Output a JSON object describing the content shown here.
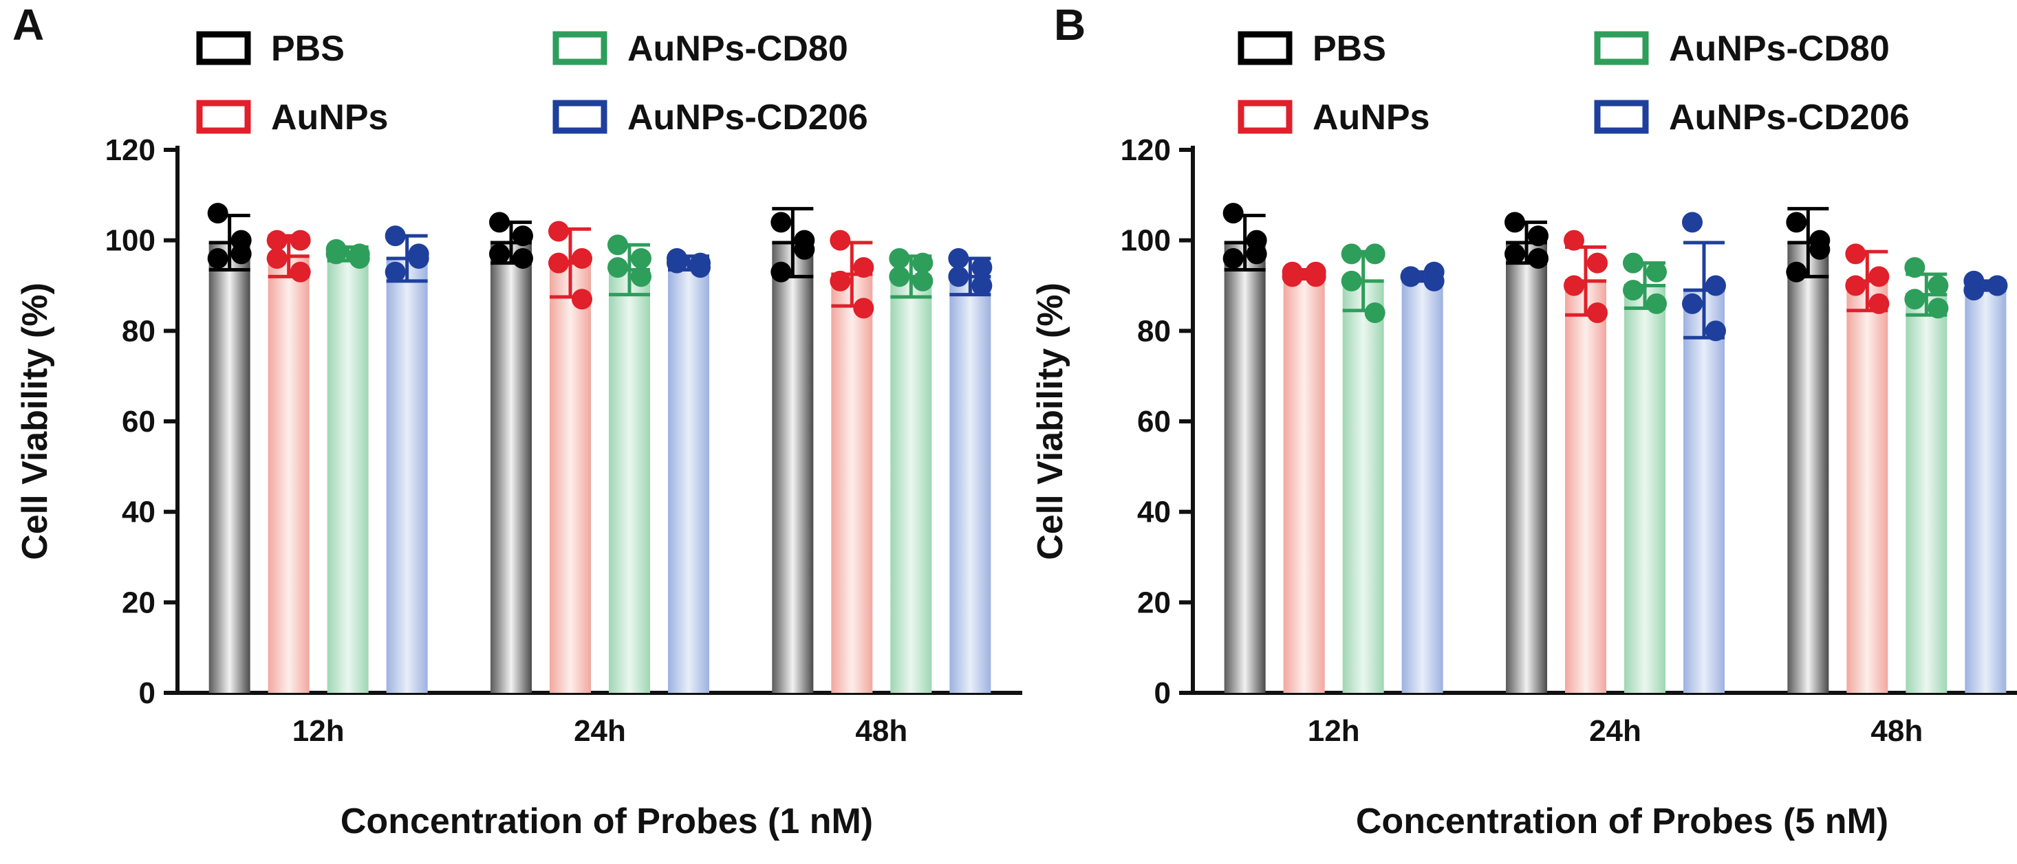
{
  "colors": {
    "PBS": "#000000",
    "AuNPs": "#e0202a",
    "AuNPs-CD80": "#2e9e5b",
    "AuNPs-CD206": "#1f3f9c"
  },
  "chart_data": [
    {
      "panel_label": "A",
      "type": "bar",
      "categories": [
        "12h",
        "24h",
        "48h"
      ],
      "xlabel": "Concentration of Probes (1 nM)",
      "ylabel": "Cell Viability (%)",
      "ylim": [
        0,
        120
      ],
      "yticks": [
        0,
        20,
        40,
        60,
        80,
        100,
        120
      ],
      "legend_position": "top",
      "grid": false,
      "series": [
        {
          "name": "PBS",
          "values": [
            99.5,
            99.5,
            99.5
          ],
          "sd": [
            6.0,
            4.5,
            7.5
          ],
          "points": [
            [
              106,
              100,
              96,
              97
            ],
            [
              104,
              101,
              97,
              96
            ],
            [
              104,
              98,
              93,
              100
            ]
          ]
        },
        {
          "name": "AuNPs",
          "values": [
            96.5,
            95.0,
            92.5
          ],
          "sd": [
            4.5,
            7.5,
            7.0
          ],
          "points": [
            [
              100,
              100,
              96,
              93
            ],
            [
              102,
              96,
              95,
              87
            ],
            [
              100,
              94,
              91,
              85
            ]
          ]
        },
        {
          "name": "AuNPs-CD80",
          "values": [
            97.0,
            93.5,
            92.0
          ],
          "sd": [
            1.5,
            5.5,
            4.5
          ],
          "points": [
            [
              98,
              96,
              97,
              97
            ],
            [
              99,
              96,
              94,
              92
            ],
            [
              96,
              95,
              92,
              91
            ]
          ]
        },
        {
          "name": "AuNPs-CD206",
          "values": [
            96.0,
            95.0,
            92.0
          ],
          "sd": [
            5.0,
            1.5,
            4.0
          ],
          "points": [
            [
              101,
              97,
              93,
              96
            ],
            [
              96,
              95,
              95,
              94
            ],
            [
              96,
              94,
              92,
              90
            ]
          ]
        }
      ]
    },
    {
      "panel_label": "B",
      "type": "bar",
      "categories": [
        "12h",
        "24h",
        "48h"
      ],
      "xlabel": "Concentration of Probes (5 nM)",
      "ylabel": "Cell Viability (%)",
      "ylim": [
        0,
        120
      ],
      "yticks": [
        0,
        20,
        40,
        60,
        80,
        100,
        120
      ],
      "legend_position": "top",
      "grid": false,
      "series": [
        {
          "name": "PBS",
          "values": [
            99.5,
            99.5,
            99.5
          ],
          "sd": [
            6.0,
            4.5,
            7.5
          ],
          "points": [
            [
              106,
              100,
              96,
              97
            ],
            [
              104,
              101,
              97,
              96
            ],
            [
              104,
              98,
              93,
              100
            ]
          ]
        },
        {
          "name": "AuNPs",
          "values": [
            92.5,
            91.0,
            91.0
          ],
          "sd": [
            1.0,
            7.5,
            6.5
          ],
          "points": [
            [
              93,
              92,
              92,
              93
            ],
            [
              100,
              95,
              90,
              84
            ],
            [
              97,
              92,
              90,
              86
            ]
          ]
        },
        {
          "name": "AuNPs-CD80",
          "values": [
            91.0,
            90.0,
            88.0
          ],
          "sd": [
            6.5,
            5.0,
            4.5
          ],
          "points": [
            [
              97,
              97,
              91,
              84
            ],
            [
              95,
              93,
              89,
              86
            ],
            [
              94,
              90,
              87,
              85
            ]
          ]
        },
        {
          "name": "AuNPs-CD206",
          "values": [
            92.0,
            89.0,
            90.0
          ],
          "sd": [
            1.0,
            10.5,
            1.0
          ],
          "points": [
            [
              92,
              91,
              92,
              93
            ],
            [
              104,
              90,
              86,
              80
            ],
            [
              91,
              90,
              89,
              90
            ]
          ]
        }
      ]
    }
  ]
}
